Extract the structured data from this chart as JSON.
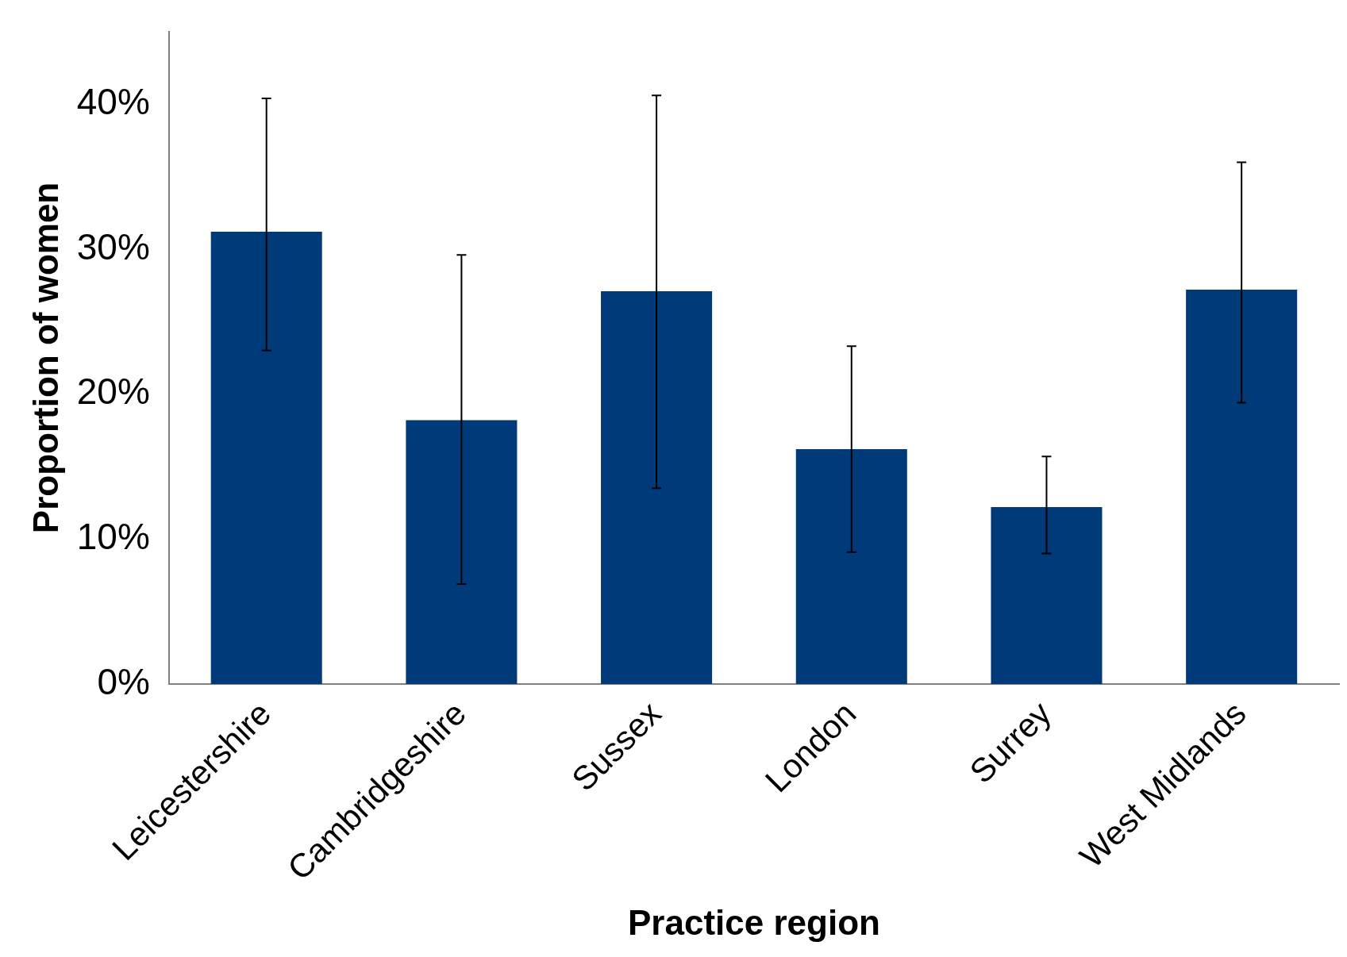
{
  "chart_data": {
    "type": "bar",
    "xlabel": "Practice region",
    "ylabel": "Proportion of women",
    "categories": [
      "Leicestershire",
      "Cambridgeshire",
      "Sussex",
      "London",
      "Surrey",
      "West Midlands"
    ],
    "values": [
      31.2,
      18.2,
      27.1,
      16.2,
      12.2,
      27.2
    ],
    "errors": [
      [
        23.0,
        40.4
      ],
      [
        6.9,
        29.6
      ],
      [
        13.5,
        40.6
      ],
      [
        9.1,
        23.3
      ],
      [
        9.0,
        15.7
      ],
      [
        19.4,
        36.0
      ]
    ],
    "color": "#003a78",
    "ylim": [
      0,
      45
    ],
    "yticks": [
      {
        "value": 0,
        "label": "0%"
      },
      {
        "value": 10,
        "label": "10%"
      },
      {
        "value": 20,
        "label": "20%"
      },
      {
        "value": 30,
        "label": "30%"
      },
      {
        "value": 40,
        "label": "40%"
      }
    ],
    "grid": false,
    "legend": false
  }
}
